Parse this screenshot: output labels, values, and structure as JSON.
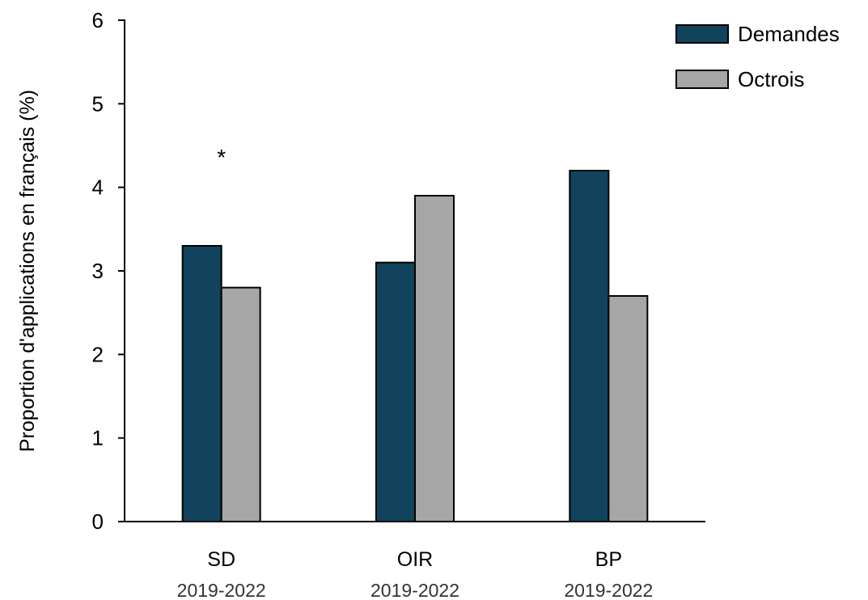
{
  "chart_data": {
    "type": "bar",
    "title": "",
    "xlabel": "",
    "ylabel": "Proportion d'applications en français (%)",
    "ylim": [
      0,
      6
    ],
    "yticks": [
      "0",
      "1",
      "2",
      "3",
      "4",
      "5",
      "6"
    ],
    "grid": false,
    "legend_position": "top-right",
    "categories": [
      "SD",
      "OIR",
      "BP"
    ],
    "category_sublabels": [
      "2019-2022",
      "2019-2022",
      "2019-2022"
    ],
    "series": [
      {
        "name": "Demandes",
        "color": "#12435c",
        "values": [
          3.3,
          3.1,
          4.2
        ]
      },
      {
        "name": "Octrois",
        "color": "#a6a6a6",
        "values": [
          2.8,
          3.9,
          2.7
        ]
      }
    ],
    "annotations": [
      {
        "text": "*",
        "category": "SD"
      }
    ]
  }
}
